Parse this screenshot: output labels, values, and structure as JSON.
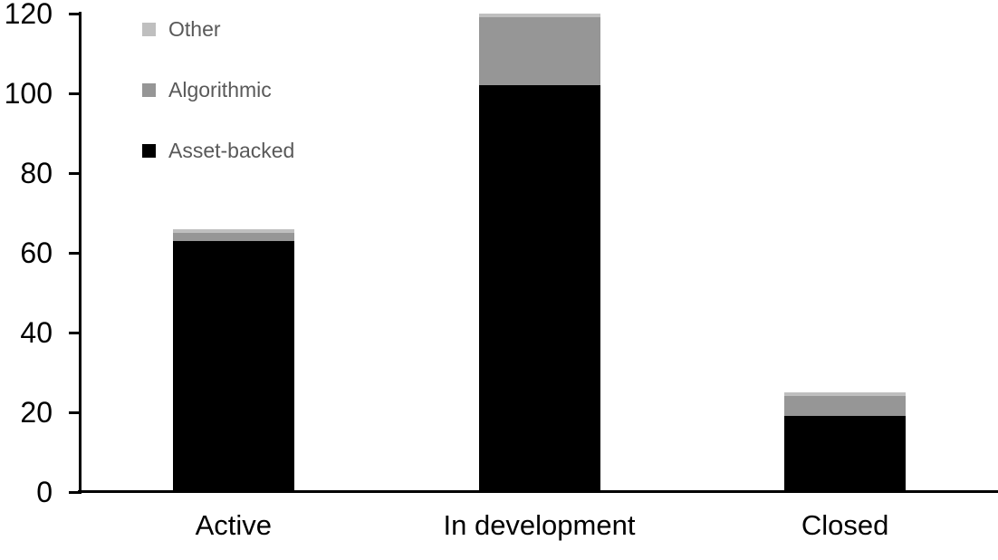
{
  "chart_data": {
    "type": "bar",
    "stacked": true,
    "title": "",
    "categories": [
      "Active",
      "In development",
      "Closed"
    ],
    "series": [
      {
        "name": "Asset-backed",
        "color": "#000000",
        "values": [
          63,
          102,
          19
        ]
      },
      {
        "name": "Algorithmic",
        "color": "#969696",
        "values": [
          2,
          17,
          5
        ]
      },
      {
        "name": "Other",
        "color": "#BFBFBF",
        "values": [
          1,
          1,
          1
        ]
      }
    ],
    "stack_totals": [
      66,
      120,
      25
    ],
    "y_axis": {
      "min": 0,
      "max": 120,
      "tick_step": 20,
      "tick_labels": [
        "0",
        "20",
        "40",
        "60",
        "80",
        "100",
        "120"
      ]
    },
    "legend": {
      "position": "top-left",
      "entries": [
        "Other",
        "Algorithmic",
        "Asset-backed"
      ]
    },
    "grid": false,
    "background_color": "#FFFFFF",
    "axis_color": "#000000",
    "legend_text_color": "#595959"
  }
}
